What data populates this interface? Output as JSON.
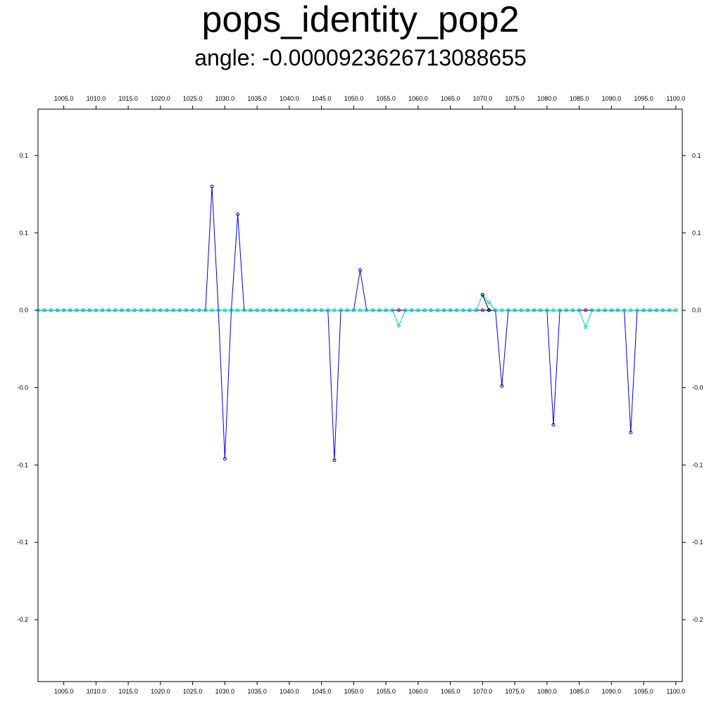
{
  "chart_data": {
    "type": "line",
    "title": "pops_identity_pop2",
    "subtitle": "angle: -0.0000923626713088655",
    "xlim": [
      1001,
      1101
    ],
    "ylim": [
      -0.24,
      0.13
    ],
    "x_ticks": [
      1005,
      1010,
      1015,
      1020,
      1025,
      1030,
      1035,
      1040,
      1045,
      1050,
      1055,
      1060,
      1065,
      1070,
      1075,
      1080,
      1085,
      1090,
      1095,
      1100
    ],
    "x_tick_labels": [
      "1005.0",
      "1010.0",
      "1015.0",
      "1020.0",
      "1025.0",
      "1030.0",
      "1035.0",
      "1040.0",
      "1045.0",
      "1050.0",
      "1055.0",
      "1060.0",
      "1065.0",
      "1070.0",
      "1075.0",
      "1080.0",
      "1085.0",
      "1090.0",
      "1095.0",
      "1100.0"
    ],
    "y_ticks": [
      -0.2,
      -0.15,
      -0.1,
      -0.05,
      0.0,
      0.05,
      0.1
    ],
    "y_tick_labels": [
      "-0.2",
      "-0.1",
      "-0.1",
      "-0.0",
      "0.0",
      "0.1",
      "0.1"
    ],
    "x_range": [
      1001,
      1100
    ],
    "grid": false,
    "series": [
      {
        "color": "#00ff00",
        "marker": "circle",
        "points": []
      },
      {
        "color": "#0000dd",
        "marker": "circle",
        "points": [
          [
            1027,
            0
          ],
          [
            1028,
            0.08
          ],
          [
            1029,
            0
          ],
          [
            1030,
            -0.096
          ],
          [
            1031,
            0
          ],
          [
            1032,
            0.062
          ],
          [
            1033,
            0
          ],
          [
            1046,
            0
          ],
          [
            1047,
            -0.097
          ],
          [
            1048,
            0
          ],
          [
            1050,
            0
          ],
          [
            1051,
            0.026
          ],
          [
            1052,
            0
          ],
          [
            1072,
            0
          ],
          [
            1073,
            -0.049
          ],
          [
            1074,
            0
          ],
          [
            1080,
            0
          ],
          [
            1081,
            -0.074
          ],
          [
            1082,
            0
          ],
          [
            1092,
            0
          ],
          [
            1093,
            -0.079
          ],
          [
            1094,
            0
          ]
        ]
      },
      {
        "color": "#00cccc",
        "marker": "circle",
        "points": [
          [
            1056,
            0
          ],
          [
            1057,
            -0.01
          ],
          [
            1058,
            0
          ],
          [
            1069,
            0
          ],
          [
            1070,
            0.01
          ],
          [
            1071,
            0.005
          ],
          [
            1072,
            0
          ],
          [
            1085,
            0
          ],
          [
            1086,
            -0.011
          ],
          [
            1087,
            0
          ]
        ]
      },
      {
        "color": "#000000",
        "marker": "circle",
        "points": [
          [
            1070,
            0.01
          ],
          [
            1071,
            0
          ]
        ]
      },
      {
        "color": "#ff0000",
        "marker": "circle",
        "points": [
          [
            1057,
            0
          ],
          [
            1070,
            0
          ],
          [
            1086,
            0
          ]
        ]
      }
    ]
  }
}
